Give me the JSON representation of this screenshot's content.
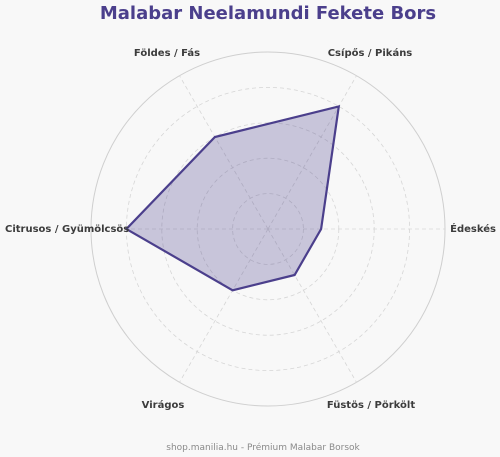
{
  "chart_data": {
    "type": "radar",
    "title": "Malabar Neelamundi Fekete Bors",
    "axes": [
      "Csípős / Pikáns",
      "Édeskés",
      "Füstös / Pörkölt",
      "Virágos",
      "Citrusos / Gyümölcsös",
      "Földes / Fás"
    ],
    "values": [
      8,
      3,
      3,
      4,
      8,
      6
    ],
    "rmax": 10,
    "rings": [
      2,
      4,
      6,
      8,
      10
    ],
    "grid": true,
    "series_color": "#4b3f8c"
  },
  "footer": "shop.manilia.hu - Prémium Malabar Borsok"
}
